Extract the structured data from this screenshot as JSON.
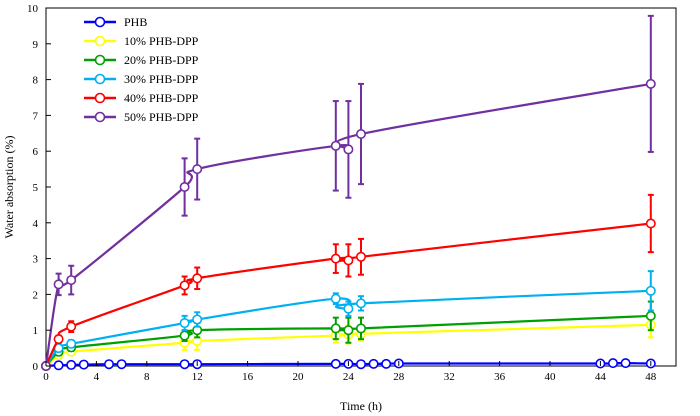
{
  "chart_data": {
    "type": "line",
    "xlabel": "Time (h)",
    "ylabel": "Water absorption (%)",
    "xlim": [
      0,
      50
    ],
    "ylim": [
      0,
      10
    ],
    "xticks": [
      0,
      4,
      8,
      12,
      16,
      20,
      24,
      28,
      32,
      36,
      40,
      44,
      48
    ],
    "yticks": [
      0,
      1,
      2,
      3,
      4,
      5,
      6,
      7,
      8,
      9,
      10
    ],
    "x_tick_labels": [
      "0",
      "4",
      "8",
      "12",
      "16",
      "20",
      "24",
      "28",
      "32",
      "36",
      "40",
      "44",
      "48"
    ],
    "y_tick_labels": [
      "0",
      "1",
      "2",
      "3",
      "4",
      "5",
      "6",
      "7",
      "8",
      "9",
      "10"
    ],
    "grid": false,
    "legend_position": "top-left",
    "series": [
      {
        "name": "PHB",
        "color": "#0000ff",
        "x": [
          0,
          1,
          2,
          3,
          5,
          6,
          11,
          12,
          23,
          24,
          25,
          26,
          27,
          28,
          44,
          45,
          46,
          48
        ],
        "y": [
          0,
          0.02,
          0.03,
          0.04,
          0.05,
          0.05,
          0.05,
          0.05,
          0.06,
          0.06,
          0.05,
          0.06,
          0.06,
          0.07,
          0.07,
          0.08,
          0.08,
          0.07
        ],
        "err": [
          0,
          0,
          0,
          0,
          0,
          0,
          0,
          0,
          0,
          0,
          0,
          0,
          0,
          0,
          0,
          0,
          0,
          0
        ]
      },
      {
        "name": "10% PHB-DPP",
        "color": "#ffff00",
        "x": [
          0,
          1,
          2,
          11,
          12,
          23,
          24,
          25,
          48
        ],
        "y": [
          0,
          0.3,
          0.4,
          0.65,
          0.7,
          0.85,
          0.88,
          0.9,
          1.15
        ],
        "err": [
          0,
          0.05,
          0.05,
          0.2,
          0.25,
          0.2,
          0.25,
          0.2,
          0.35
        ]
      },
      {
        "name": "20% PHB-DPP",
        "color": "#00a000",
        "x": [
          0,
          1,
          2,
          11,
          12,
          23,
          24,
          25,
          48
        ],
        "y": [
          0,
          0.4,
          0.52,
          0.85,
          1.0,
          1.05,
          1.0,
          1.05,
          1.4
        ],
        "err": [
          0,
          0.1,
          0.1,
          0.15,
          0.2,
          0.3,
          0.35,
          0.3,
          0.4
        ]
      },
      {
        "name": "30% PHB-DPP",
        "color": "#00b0f0",
        "x": [
          0,
          1,
          2,
          11,
          12,
          23,
          24,
          25,
          48
        ],
        "y": [
          0,
          0.5,
          0.62,
          1.2,
          1.3,
          1.88,
          1.6,
          1.75,
          2.1
        ],
        "err": [
          0,
          0.1,
          0.1,
          0.2,
          0.2,
          0.15,
          0.2,
          0.2,
          0.55
        ]
      },
      {
        "name": "40% PHB-DPP",
        "color": "#ff0000",
        "x": [
          0,
          1,
          2,
          11,
          12,
          23,
          24,
          25,
          48
        ],
        "y": [
          0,
          0.75,
          1.1,
          2.25,
          2.45,
          3.0,
          2.95,
          3.05,
          3.98
        ],
        "err": [
          0,
          0.1,
          0.15,
          0.25,
          0.3,
          0.4,
          0.45,
          0.5,
          0.8
        ]
      },
      {
        "name": "50% PHB-DPP",
        "color": "#7030a0",
        "x": [
          0,
          1,
          2,
          11,
          12,
          23,
          24,
          25,
          48
        ],
        "y": [
          0,
          2.28,
          2.4,
          5.0,
          5.5,
          6.15,
          6.05,
          6.48,
          7.88
        ],
        "err": [
          0,
          0.3,
          0.4,
          0.8,
          0.85,
          1.25,
          1.35,
          1.4,
          1.9
        ]
      }
    ]
  }
}
